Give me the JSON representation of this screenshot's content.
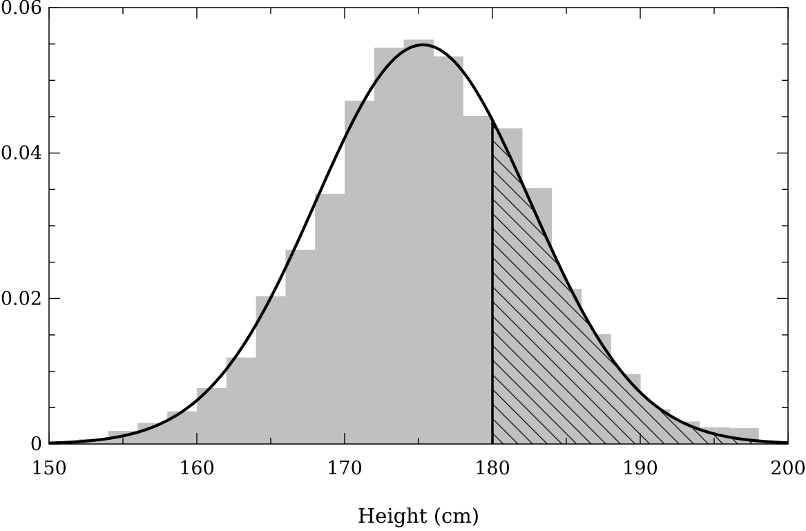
{
  "chart_data": {
    "type": "bar",
    "title": "",
    "xlabel": "Height (cm)",
    "ylabel": "",
    "xlim": [
      150,
      200
    ],
    "ylim": [
      0,
      0.06
    ],
    "x_ticks": [
      150,
      160,
      170,
      180,
      190,
      200
    ],
    "x_tick_labels": [
      "150",
      "160",
      "170",
      "180",
      "190",
      "200"
    ],
    "y_ticks": [
      0,
      0.02,
      0.04,
      0.06
    ],
    "y_tick_labels": [
      "0",
      "0.02",
      "0.04",
      "0.06"
    ],
    "grid": false,
    "legend": "none",
    "histogram": {
      "bin_width": 2,
      "bin_starts": [
        150,
        152,
        154,
        156,
        158,
        160,
        162,
        164,
        166,
        168,
        170,
        172,
        174,
        176,
        178,
        180,
        182,
        184,
        186,
        188,
        190,
        192,
        194,
        196,
        198
      ],
      "values": [
        0.0001,
        0.0007,
        0.0018,
        0.0029,
        0.0045,
        0.0077,
        0.0119,
        0.0203,
        0.0267,
        0.0344,
        0.0472,
        0.0545,
        0.0556,
        0.0533,
        0.0451,
        0.0434,
        0.0352,
        0.0213,
        0.0151,
        0.0096,
        0.0048,
        0.0031,
        0.0023,
        0.0022,
        0.0003
      ],
      "color": "#c0c0c0"
    },
    "curve": {
      "type": "normal-density",
      "mean": 175.3,
      "sd": 7.27,
      "color": "#000000"
    },
    "shaded_region": {
      "from": 180,
      "to": 200,
      "pattern": "diagonal-hatch"
    }
  }
}
